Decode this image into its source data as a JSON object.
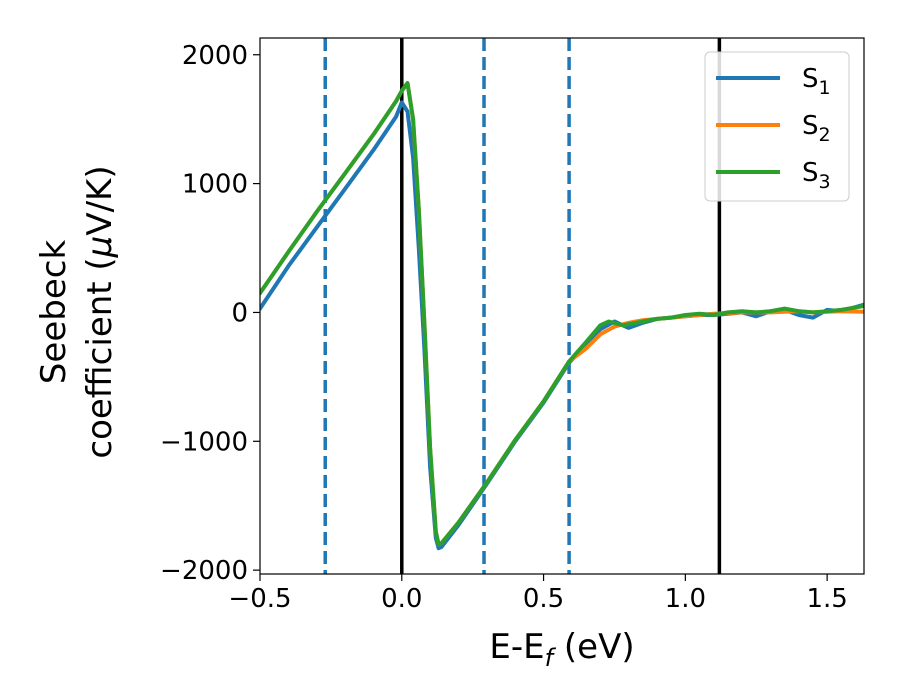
{
  "chart_data": {
    "type": "line",
    "xlabel_main": "E-E",
    "xlabel_sub": "f",
    "xlabel_unit": " (eV)",
    "ylabel_line1": "Seebeck",
    "ylabel_line2": "coefficient  (",
    "ylabel_mu": "μ",
    "ylabel_unit": "V/K)",
    "xlim": [
      -0.5,
      1.63
    ],
    "ylim": [
      -2030,
      2130
    ],
    "xticks": [
      -0.5,
      0.0,
      0.5,
      1.0,
      1.5
    ],
    "xtick_labels": [
      "−0.5",
      "0.0",
      "0.5",
      "1.0",
      "1.5"
    ],
    "yticks": [
      -2000,
      -1000,
      0,
      1000,
      2000
    ],
    "ytick_labels": [
      "−2000",
      "−1000",
      "0",
      "1000",
      "2000"
    ],
    "grid": false,
    "legend_position": "top-right",
    "vlines_solid": [
      0.0,
      1.12
    ],
    "vlines_dashed": [
      -0.27,
      0.29,
      0.59
    ],
    "vline_solid_color": "#000000",
    "vline_dashed_color": "#1f77b4",
    "series": [
      {
        "name": "S",
        "sub": "1",
        "color": "#1f77b4",
        "points": [
          [
            -0.5,
            30
          ],
          [
            -0.4,
            360
          ],
          [
            -0.3,
            660
          ],
          [
            -0.2,
            960
          ],
          [
            -0.1,
            1260
          ],
          [
            -0.02,
            1520
          ],
          [
            0.0,
            1630
          ],
          [
            0.02,
            1560
          ],
          [
            0.04,
            1200
          ],
          [
            0.06,
            500
          ],
          [
            0.08,
            -300
          ],
          [
            0.1,
            -1200
          ],
          [
            0.12,
            -1750
          ],
          [
            0.13,
            -1830
          ],
          [
            0.14,
            -1820
          ],
          [
            0.2,
            -1650
          ],
          [
            0.3,
            -1330
          ],
          [
            0.4,
            -1000
          ],
          [
            0.5,
            -700
          ],
          [
            0.59,
            -390
          ],
          [
            0.65,
            -250
          ],
          [
            0.7,
            -130
          ],
          [
            0.75,
            -70
          ],
          [
            0.8,
            -120
          ],
          [
            0.85,
            -80
          ],
          [
            0.9,
            -50
          ],
          [
            0.95,
            -40
          ],
          [
            1.0,
            -30
          ],
          [
            1.05,
            -20
          ],
          [
            1.1,
            -20
          ],
          [
            1.15,
            -10
          ],
          [
            1.2,
            0
          ],
          [
            1.25,
            -30
          ],
          [
            1.3,
            10
          ],
          [
            1.35,
            20
          ],
          [
            1.4,
            -20
          ],
          [
            1.45,
            -40
          ],
          [
            1.5,
            20
          ],
          [
            1.55,
            10
          ],
          [
            1.63,
            60
          ]
        ]
      },
      {
        "name": "S",
        "sub": "2",
        "color": "#ff7f0e",
        "points": [
          [
            -0.5,
            150
          ],
          [
            -0.4,
            470
          ],
          [
            -0.3,
            780
          ],
          [
            -0.2,
            1080
          ],
          [
            -0.1,
            1380
          ],
          [
            -0.02,
            1640
          ],
          [
            0.0,
            1720
          ],
          [
            0.02,
            1780
          ],
          [
            0.04,
            1500
          ],
          [
            0.06,
            800
          ],
          [
            0.08,
            -100
          ],
          [
            0.1,
            -1050
          ],
          [
            0.12,
            -1700
          ],
          [
            0.13,
            -1800
          ],
          [
            0.14,
            -1790
          ],
          [
            0.2,
            -1630
          ],
          [
            0.3,
            -1320
          ],
          [
            0.4,
            -990
          ],
          [
            0.5,
            -690
          ],
          [
            0.59,
            -380
          ],
          [
            0.65,
            -280
          ],
          [
            0.7,
            -170
          ],
          [
            0.75,
            -110
          ],
          [
            0.8,
            -80
          ],
          [
            0.85,
            -60
          ],
          [
            0.9,
            -50
          ],
          [
            0.95,
            -40
          ],
          [
            1.0,
            -30
          ],
          [
            1.05,
            -20
          ],
          [
            1.1,
            -10
          ],
          [
            1.15,
            -5
          ],
          [
            1.2,
            0
          ],
          [
            1.25,
            0
          ],
          [
            1.3,
            0
          ],
          [
            1.35,
            5
          ],
          [
            1.4,
            10
          ],
          [
            1.45,
            0
          ],
          [
            1.5,
            5
          ],
          [
            1.55,
            10
          ],
          [
            1.63,
            5
          ]
        ]
      },
      {
        "name": "S",
        "sub": "3",
        "color": "#2ca02c",
        "points": [
          [
            -0.5,
            150
          ],
          [
            -0.4,
            470
          ],
          [
            -0.3,
            780
          ],
          [
            -0.2,
            1080
          ],
          [
            -0.1,
            1380
          ],
          [
            -0.02,
            1640
          ],
          [
            0.0,
            1720
          ],
          [
            0.02,
            1780
          ],
          [
            0.04,
            1500
          ],
          [
            0.06,
            800
          ],
          [
            0.08,
            -100
          ],
          [
            0.1,
            -1050
          ],
          [
            0.12,
            -1700
          ],
          [
            0.13,
            -1800
          ],
          [
            0.14,
            -1790
          ],
          [
            0.2,
            -1630
          ],
          [
            0.3,
            -1320
          ],
          [
            0.4,
            -990
          ],
          [
            0.5,
            -690
          ],
          [
            0.59,
            -380
          ],
          [
            0.65,
            -230
          ],
          [
            0.7,
            -100
          ],
          [
            0.73,
            -70
          ],
          [
            0.78,
            -100
          ],
          [
            0.85,
            -70
          ],
          [
            0.9,
            -50
          ],
          [
            0.95,
            -40
          ],
          [
            1.0,
            -20
          ],
          [
            1.05,
            -10
          ],
          [
            1.1,
            -20
          ],
          [
            1.15,
            0
          ],
          [
            1.2,
            10
          ],
          [
            1.25,
            0
          ],
          [
            1.3,
            10
          ],
          [
            1.35,
            30
          ],
          [
            1.4,
            10
          ],
          [
            1.45,
            0
          ],
          [
            1.5,
            10
          ],
          [
            1.55,
            20
          ],
          [
            1.63,
            50
          ]
        ]
      }
    ]
  }
}
